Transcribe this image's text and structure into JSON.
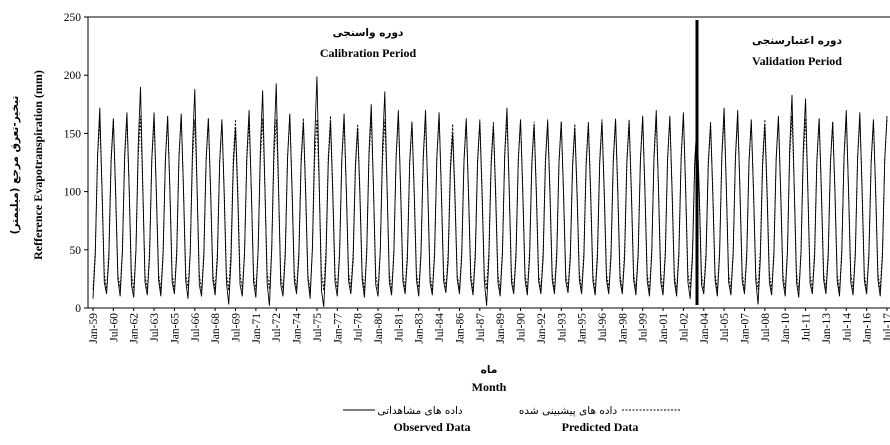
{
  "chart_data": {
    "type": "line",
    "annotations": [
      {
        "text": "دوره واسنجی"
      },
      {
        "text": "Calibration Period"
      },
      {
        "text": "دوره اعتبارسنجی"
      },
      {
        "text": "Validation Period"
      }
    ],
    "ylabel": "Refference Evapotranspiration (mm)",
    "ylabel_fa": "تبخیر-تعرق مرجع (میلیمتر)",
    "xlabel": "Month",
    "xlabel_fa": "ماه",
    "ylim": [
      0,
      250
    ],
    "yticks": [
      0,
      50,
      100,
      150,
      200,
      250
    ],
    "categories": [
      "Jan-59",
      null,
      null,
      null,
      null,
      null,
      null,
      null,
      null,
      "Jul-60",
      null,
      null,
      null,
      null,
      null,
      null,
      null,
      null,
      "Jan-62",
      null,
      null,
      null,
      null,
      null,
      null,
      null,
      null,
      "Jul-63",
      null,
      null,
      null,
      null,
      null,
      null,
      null,
      null,
      "Jan-65",
      null,
      null,
      null,
      null,
      null,
      null,
      null,
      null,
      "Jul-66",
      null,
      null,
      null,
      null,
      null,
      null,
      null,
      null,
      "Jan-68",
      null,
      null,
      null,
      null,
      null,
      null,
      null,
      null,
      "Jul-69",
      null,
      null,
      null,
      null,
      null,
      null,
      null,
      null,
      "Jan-71",
      null,
      null,
      null,
      null,
      null,
      null,
      null,
      null,
      "Jul-72",
      null,
      null,
      null,
      null,
      null,
      null,
      null,
      null,
      "Jan-74",
      null,
      null,
      null,
      null,
      null,
      null,
      null,
      null,
      "Jul-75",
      null,
      null,
      null,
      null,
      null,
      null,
      null,
      null,
      "Jan-77",
      null,
      null,
      null,
      null,
      null,
      null,
      null,
      null,
      "Jul-78",
      null,
      null,
      null,
      null,
      null,
      null,
      null,
      null,
      "Jan-80",
      null,
      null,
      null,
      null,
      null,
      null,
      null,
      null,
      "Jul-81",
      null,
      null,
      null,
      null,
      null,
      null,
      null,
      null,
      "Jan-83",
      null,
      null,
      null,
      null,
      null,
      null,
      null,
      null,
      "Jul-84",
      null,
      null,
      null,
      null,
      null,
      null,
      null,
      null,
      "Jan-86",
      null,
      null,
      null,
      null,
      null,
      null,
      null,
      null,
      "Jul-87",
      null,
      null,
      null,
      null,
      null,
      null,
      null,
      null,
      "Jan-89",
      null,
      null,
      null,
      null,
      null,
      null,
      null,
      null,
      "Jul-90",
      null,
      null,
      null,
      null,
      null,
      null,
      null,
      null,
      "Jan-92",
      null,
      null,
      null,
      null,
      null,
      null,
      null,
      null,
      "Jul-93",
      null,
      null,
      null,
      null,
      null,
      null,
      null,
      null,
      "Jan-95",
      null,
      null,
      null,
      null,
      null,
      null,
      null,
      null,
      "Jul-96",
      null,
      null,
      null,
      null,
      null,
      null,
      null,
      null,
      "Jan-98",
      null,
      null,
      null,
      null,
      null,
      null,
      null,
      null,
      "Jul-99",
      null,
      null,
      null,
      null,
      null,
      null,
      null,
      null,
      "Jan-01",
      null,
      null,
      null,
      null,
      null,
      null,
      null,
      null,
      "Jul-02",
      null,
      null,
      null,
      null,
      null,
      null,
      null,
      null,
      "Jan-04",
      null,
      null,
      null,
      null,
      null,
      null,
      null,
      null,
      "Jul-05",
      null,
      null,
      null,
      null,
      null,
      null,
      null,
      null,
      "Jan-07",
      null,
      null,
      null,
      null,
      null,
      null,
      null,
      null,
      "Jul-08",
      null,
      null,
      null,
      null,
      null,
      null,
      null,
      null,
      "Jan-10",
      null,
      null,
      null,
      null,
      null,
      null,
      null,
      null,
      "Jul-11",
      null,
      null,
      null,
      null,
      null,
      null,
      null,
      null,
      "Jan-13",
      null,
      null,
      null,
      null,
      null,
      null,
      null,
      null,
      "Jul-14",
      null,
      null,
      null,
      null,
      null,
      null,
      null,
      null,
      "Jan-16",
      null,
      null,
      null,
      null,
      null,
      null,
      null,
      null,
      "Jul-17"
    ],
    "series": [
      {
        "name": "Observed Data",
        "name_fa": "داده های مشاهداتی",
        "color": "#000000",
        "dashed": false,
        "values": [
          8,
          45,
          130,
          172,
          100,
          22,
          12,
          42,
          125,
          162,
          98,
          25,
          10,
          48,
          132,
          168,
          102,
          20,
          9,
          50,
          140,
          190,
          105,
          22,
          11,
          44,
          128,
          168,
          98,
          24,
          10,
          46,
          127,
          165,
          100,
          22,
          12,
          45,
          129,
          167,
          101,
          23,
          8,
          48,
          138,
          188,
          104,
          20,
          10,
          44,
          126,
          163,
          99,
          24,
          11,
          43,
          125,
          162,
          97,
          22,
          3,
          40,
          120,
          155,
          95,
          20,
          10,
          47,
          130,
          170,
          100,
          22,
          9,
          49,
          137,
          187,
          103,
          21,
          2,
          50,
          140,
          193,
          106,
          20,
          10,
          45,
          128,
          167,
          100,
          23,
          12,
          43,
          124,
          160,
          98,
          25,
          8,
          52,
          145,
          199,
          108,
          15,
          1,
          42,
          124,
          160,
          97,
          22,
          10,
          45,
          128,
          167,
          100,
          23,
          12,
          41,
          120,
          155,
          96,
          24,
          9,
          47,
          133,
          175,
          102,
          20,
          10,
          49,
          138,
          186,
          104,
          22,
          11,
          46,
          130,
          170,
          100,
          23,
          12,
          43,
          124,
          160,
          98,
          24,
          10,
          46,
          130,
          170,
          100,
          22,
          11,
          45,
          129,
          168,
          99,
          23,
          13,
          40,
          118,
          150,
          94,
          25,
          12,
          44,
          126,
          163,
          98,
          24,
          11,
          43,
          124,
          160,
          97,
          23,
          2,
          42,
          122,
          157,
          96,
          22,
          10,
          46,
          132,
          172,
          101,
          22,
          12,
          44,
          126,
          162,
          98,
          24,
          11,
          43,
          123,
          158,
          97,
          23,
          12,
          43,
          124,
          160,
          98,
          24,
          12,
          43,
          124,
          160,
          98,
          23,
          13,
          42,
          121,
          155,
          96,
          24,
          12,
          43,
          122,
          158,
          97,
          23,
          11,
          43,
          124,
          160,
          98,
          24,
          12,
          44,
          125,
          162,
          98,
          23,
          12,
          43,
          124,
          160,
          98,
          24,
          11,
          45,
          127,
          165,
          99,
          23,
          10,
          46,
          130,
          170,
          100,
          22,
          11,
          45,
          127,
          165,
          99,
          23,
          10,
          45,
          129,
          168,
          100,
          22,
          8,
          43,
          124,
          160,
          98,
          20,
          12,
          43,
          123,
          158,
          97,
          24,
          10,
          46,
          132,
          172,
          101,
          22,
          11,
          46,
          130,
          170,
          100,
          23,
          12,
          44,
          125,
          162,
          98,
          24,
          3,
          42,
          122,
          158,
          96,
          22,
          11,
          45,
          127,
          165,
          99,
          23,
          10,
          48,
          138,
          183,
          103,
          22,
          9,
          48,
          137,
          180,
          102,
          21,
          12,
          44,
          126,
          163,
          98,
          24,
          12,
          43,
          124,
          160,
          98,
          23,
          10,
          46,
          130,
          170,
          100,
          22,
          11,
          45,
          129,
          168,
          99,
          23,
          12,
          44,
          125,
          162,
          98,
          24,
          10,
          45,
          127,
          165
        ]
      },
      {
        "name": "Predicted Data",
        "name_fa": "داده های پیشبینی شده",
        "color": "#000000",
        "dashed": true,
        "values": [
          16,
          50,
          128,
          160,
          103,
          30,
          15,
          49,
          129,
          163,
          102,
          29,
          17,
          50,
          128,
          162,
          103,
          30,
          15,
          51,
          130,
          165,
          104,
          28,
          16,
          49,
          127,
          160,
          102,
          30,
          15,
          50,
          128,
          163,
          103,
          29,
          16,
          50,
          130,
          165,
          104,
          30,
          17,
          50,
          128,
          162,
          103,
          29,
          15,
          49,
          129,
          163,
          102,
          30,
          16,
          49,
          127,
          160,
          102,
          29,
          15,
          50,
          128,
          162,
          103,
          30,
          16,
          49,
          127,
          160,
          102,
          29,
          15,
          50,
          129,
          163,
          103,
          30,
          16,
          50,
          128,
          162,
          103,
          28,
          15,
          51,
          130,
          165,
          104,
          30,
          16,
          50,
          129,
          163,
          103,
          29,
          14,
          50,
          128,
          162,
          103,
          30,
          15,
          51,
          130,
          165,
          104,
          29,
          16,
          49,
          127,
          160,
          102,
          30,
          17,
          48,
          125,
          158,
          101,
          30,
          15,
          50,
          129,
          163,
          103,
          29,
          16,
          50,
          128,
          162,
          103,
          30,
          15,
          50,
          129,
          163,
          103,
          29,
          16,
          49,
          127,
          160,
          102,
          30,
          16,
          50,
          128,
          162,
          103,
          29,
          15,
          50,
          129,
          163,
          103,
          30,
          17,
          48,
          125,
          158,
          101,
          29,
          16,
          49,
          127,
          160,
          102,
          30,
          15,
          50,
          128,
          162,
          103,
          29,
          16,
          49,
          127,
          160,
          102,
          30,
          15,
          50,
          129,
          163,
          103,
          29,
          16,
          50,
          128,
          162,
          103,
          30,
          16,
          49,
          127,
          160,
          102,
          29,
          15,
          50,
          128,
          162,
          103,
          30,
          16,
          49,
          127,
          160,
          102,
          29,
          17,
          48,
          125,
          158,
          101,
          30,
          16,
          49,
          127,
          160,
          102,
          29,
          15,
          50,
          128,
          162,
          103,
          30,
          16,
          50,
          129,
          163,
          103,
          29,
          15,
          50,
          128,
          162,
          103,
          30,
          16,
          50,
          129,
          163,
          103,
          29,
          15,
          50,
          128,
          162,
          103,
          30,
          16,
          50,
          129,
          163,
          103,
          29,
          15,
          51,
          130,
          165,
          104,
          30,
          17,
          48,
          125,
          158,
          101,
          29,
          16,
          49,
          127,
          160,
          102,
          30,
          15,
          50,
          129,
          163,
          103,
          29,
          16,
          50,
          128,
          162,
          103,
          30,
          15,
          49,
          127,
          160,
          102,
          29,
          16,
          50,
          128,
          162,
          103,
          30,
          15,
          50,
          129,
          163,
          103,
          29,
          16,
          51,
          130,
          165,
          104,
          30,
          15,
          50,
          129,
          163,
          103,
          29,
          16,
          50,
          128,
          162,
          103,
          30,
          16,
          49,
          127,
          160,
          102,
          29,
          15,
          50,
          129,
          163,
          103,
          30,
          16,
          50,
          128,
          162,
          103,
          29,
          15,
          49,
          127,
          160,
          102,
          30,
          16,
          50,
          128,
          162
        ]
      }
    ]
  }
}
